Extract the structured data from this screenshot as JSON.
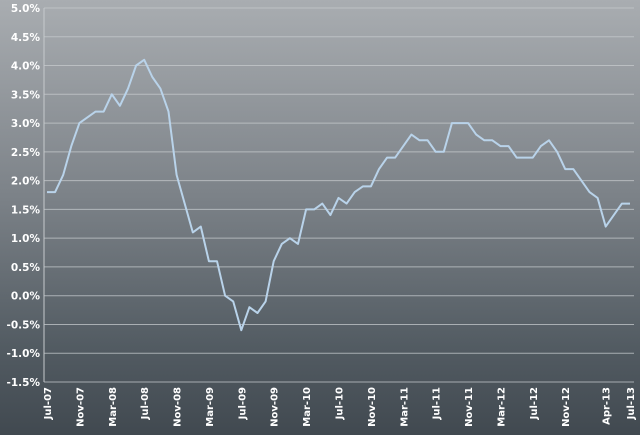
{
  "chart_data": {
    "type": "line",
    "title": "",
    "xlabel": "",
    "ylabel": "",
    "ylim": [
      -1.5,
      5.0
    ],
    "grid": true,
    "legend": "none",
    "colors": {
      "line": "#b9d3ea",
      "grid": "#c6cacd",
      "text": "#ffffff"
    },
    "y_ticks": [
      "5.0%",
      "4.5%",
      "4.0%",
      "3.5%",
      "3.0%",
      "2.5%",
      "2.0%",
      "1.5%",
      "1.0%",
      "0.5%",
      "0.0%",
      "-0.5%",
      "-1.0%",
      "-1.5%"
    ],
    "y_tick_values": [
      5.0,
      4.5,
      4.0,
      3.5,
      3.0,
      2.5,
      2.0,
      1.5,
      1.0,
      0.5,
      0.0,
      -0.5,
      -1.0,
      -1.5
    ],
    "x_ticks": [
      "Jul-07",
      "Nov-07",
      "Mar-08",
      "Jul-08",
      "Nov-08",
      "Mar-09",
      "Jul-09",
      "Nov-09",
      "Mar-10",
      "Jul-10",
      "Nov-10",
      "Mar-11",
      "Jul-11",
      "Nov-11",
      "Mar-12",
      "Jul-12",
      "Nov-12",
      "Apr-13",
      "Jul-13"
    ],
    "x_tick_index": [
      0,
      4,
      8,
      12,
      16,
      20,
      24,
      28,
      32,
      36,
      40,
      44,
      48,
      52,
      56,
      60,
      64,
      69,
      72
    ],
    "series": [
      {
        "values": [
          1.8,
          1.8,
          2.1,
          2.6,
          3.0,
          3.1,
          3.2,
          3.2,
          3.5,
          3.3,
          3.6,
          4.0,
          4.1,
          3.8,
          3.6,
          3.2,
          2.1,
          1.6,
          1.1,
          1.2,
          0.6,
          0.6,
          0.0,
          -0.1,
          -0.6,
          -0.2,
          -0.3,
          -0.1,
          0.6,
          0.9,
          1.0,
          0.9,
          1.5,
          1.5,
          1.6,
          1.4,
          1.7,
          1.6,
          1.8,
          1.9,
          1.9,
          2.2,
          2.4,
          2.4,
          2.6,
          2.8,
          2.7,
          2.7,
          2.5,
          2.5,
          3.0,
          3.0,
          3.0,
          2.8,
          2.7,
          2.7,
          2.6,
          2.6,
          2.4,
          2.4,
          2.4,
          2.6,
          2.7,
          2.5,
          2.2,
          2.2,
          2.0,
          1.8,
          1.7,
          1.2,
          1.4,
          1.6,
          1.6
        ]
      }
    ]
  }
}
